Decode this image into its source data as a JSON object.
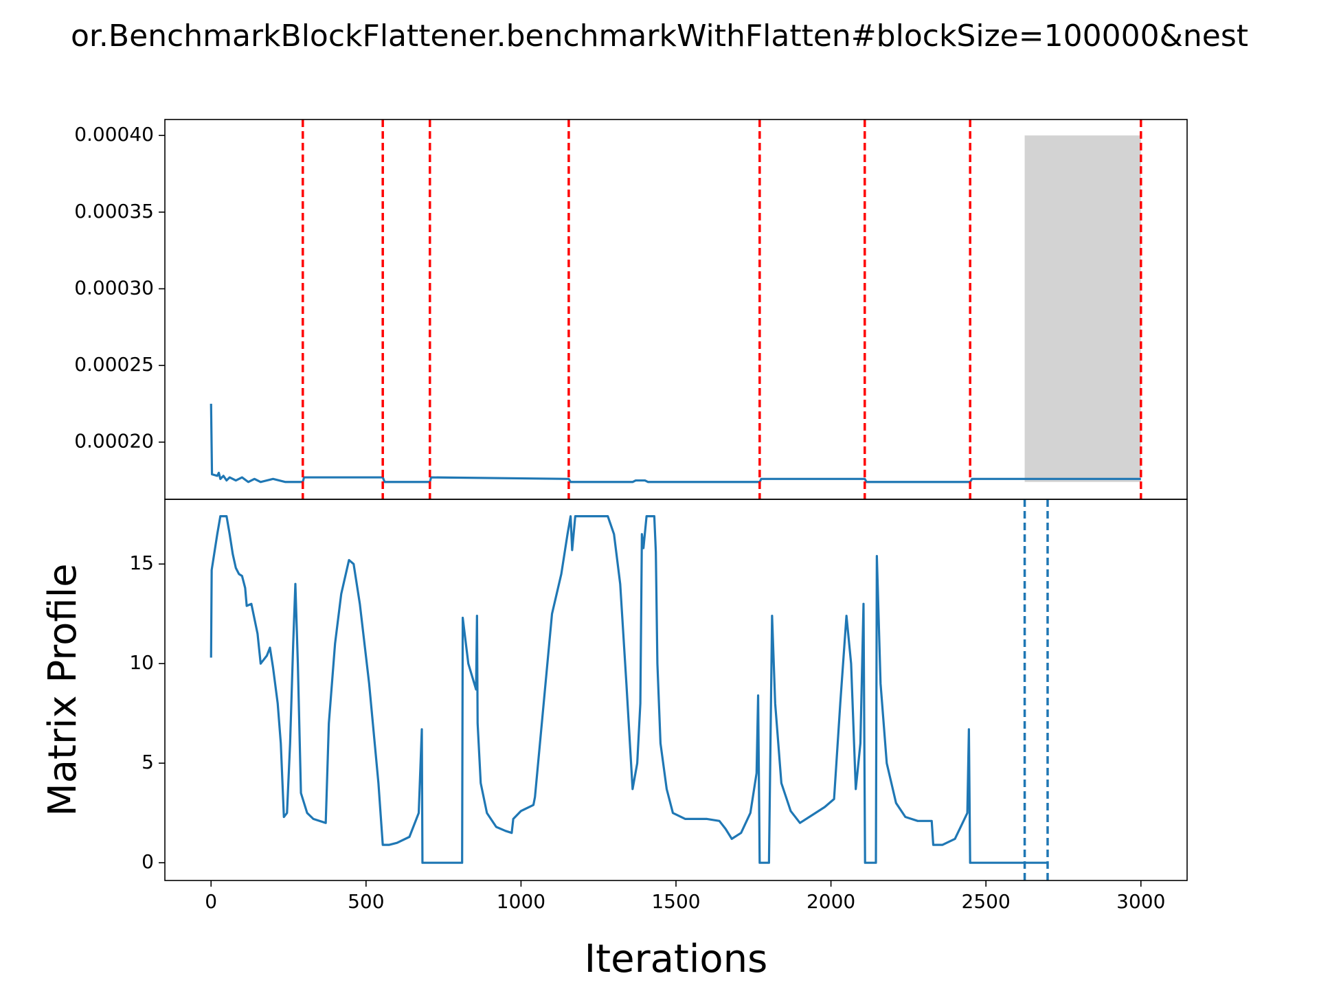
{
  "chart_data": [
    {
      "type": "line",
      "title": "or.BenchmarkBlockFlattener.benchmarkWithFlatten#blockSize=100000&nest",
      "xlim": [
        -149,
        3149
      ],
      "ylim": [
        0.0001627,
        0.0004104
      ],
      "yticks": [
        {
          "value": 0.0002,
          "label": "0.00020"
        },
        {
          "value": 0.00025,
          "label": "0.00025"
        },
        {
          "value": 0.0003,
          "label": "0.00030"
        },
        {
          "value": 0.00035,
          "label": "0.00035"
        },
        {
          "value": 0.0004,
          "label": "0.00040"
        }
      ],
      "series": [
        {
          "color": "#1f77b4",
          "x": [
            0,
            3,
            20,
            25,
            30,
            40,
            50,
            60,
            80,
            100,
            120,
            140,
            160,
            200,
            240,
            296,
            300,
            554,
            560,
            706,
            710,
            1154,
            1160,
            1360,
            1370,
            1400,
            1410,
            1770,
            1775,
            2109,
            2115,
            2449,
            2455,
            3000
          ],
          "values": [
            0.000225,
            0.000179,
            0.000178,
            0.00018,
            0.000176,
            0.000178,
            0.000175,
            0.000177,
            0.000175,
            0.000177,
            0.000174,
            0.000176,
            0.000174,
            0.000176,
            0.000174,
            0.000174,
            0.000177,
            0.000177,
            0.000174,
            0.000174,
            0.000177,
            0.000176,
            0.000174,
            0.000174,
            0.000175,
            0.000175,
            0.000174,
            0.000174,
            0.000176,
            0.000176,
            0.000174,
            0.000174,
            0.000176,
            0.000176
          ]
        }
      ],
      "vlines": {
        "x": [
          296,
          554,
          706,
          1154,
          1770,
          2109,
          2449,
          3000
        ],
        "color": "#ff0000",
        "style": "dashed"
      },
      "span": {
        "x": [
          2625,
          3000
        ],
        "y": [
          0.000174,
          0.0004
        ],
        "color": "#d3d3d3"
      }
    },
    {
      "type": "line",
      "xlabel": "Iterations",
      "ylabel": "Matrix Profile",
      "xlim": [
        -149,
        3149
      ],
      "ylim": [
        -0.89,
        18.25
      ],
      "xticks": [
        0,
        500,
        1000,
        1500,
        2000,
        2500,
        3000
      ],
      "yticks": [
        0,
        5,
        10,
        15
      ],
      "series": [
        {
          "color": "#1f77b4",
          "x": [
            0,
            2,
            10,
            20,
            30,
            50,
            60,
            70,
            80,
            90,
            100,
            110,
            115,
            130,
            150,
            160,
            180,
            190,
            200,
            215,
            225,
            235,
            245,
            255,
            265,
            272,
            280,
            290,
            300,
            310,
            330,
            370,
            380,
            400,
            420,
            445,
            460,
            480,
            510,
            540,
            554,
            575,
            600,
            640,
            670,
            680,
            682,
            810,
            812,
            830,
            855,
            858,
            860,
            870,
            890,
            920,
            950,
            970,
            975,
            1000,
            1040,
            1045,
            1100,
            1130,
            1150,
            1160,
            1165,
            1175,
            1280,
            1300,
            1320,
            1340,
            1360,
            1375,
            1385,
            1390,
            1395,
            1405,
            1430,
            1435,
            1440,
            1450,
            1470,
            1490,
            1530,
            1570,
            1600,
            1640,
            1660,
            1680,
            1710,
            1740,
            1760,
            1765,
            1770,
            1800,
            1810,
            1820,
            1840,
            1870,
            1900,
            1940,
            1980,
            2010,
            2030,
            2050,
            2065,
            2080,
            2095,
            2105,
            2110,
            2145,
            2148,
            2160,
            2180,
            2210,
            2240,
            2280,
            2325,
            2330,
            2360,
            2400,
            2440,
            2445,
            2449,
            2700
          ],
          "values": [
            10.3,
            14.7,
            15.5,
            16.5,
            17.4,
            17.4,
            16.5,
            15.5,
            14.8,
            14.5,
            14.4,
            13.8,
            12.9,
            13.0,
            11.5,
            10.0,
            10.4,
            10.8,
            9.8,
            8.0,
            6.0,
            2.3,
            2.5,
            6,
            11,
            14.0,
            10,
            3.5,
            3.0,
            2.5,
            2.2,
            2.0,
            7,
            11,
            13.5,
            15.2,
            15.0,
            13,
            9,
            4,
            0.9,
            0.9,
            1.0,
            1.3,
            2.5,
            6.7,
            0,
            0,
            12.3,
            10,
            8.7,
            12.4,
            7,
            4,
            2.5,
            1.8,
            1.6,
            1.5,
            2.2,
            2.6,
            2.9,
            3.3,
            12.5,
            14.5,
            16.5,
            17.4,
            15.7,
            17.4,
            17.4,
            16.5,
            14,
            9,
            3.7,
            5,
            8,
            16.5,
            15.8,
            17.4,
            17.4,
            15.6,
            10,
            6,
            3.7,
            2.5,
            2.2,
            2.2,
            2.2,
            2.1,
            1.7,
            1.2,
            1.5,
            2.5,
            4.5,
            8.4,
            0,
            0,
            12.4,
            8,
            4,
            2.6,
            2.0,
            2.4,
            2.8,
            3.2,
            8,
            12.4,
            10,
            3.7,
            6,
            13.0,
            0,
            0,
            15.4,
            9,
            5,
            3.0,
            2.3,
            2.1,
            2.1,
            0.9,
            0.9,
            1.2,
            2.5,
            6.7,
            0,
            0
          ]
        }
      ],
      "vlines": {
        "x": [
          2625,
          2699
        ],
        "color": "#1f77b4",
        "style": "dashed"
      }
    }
  ]
}
